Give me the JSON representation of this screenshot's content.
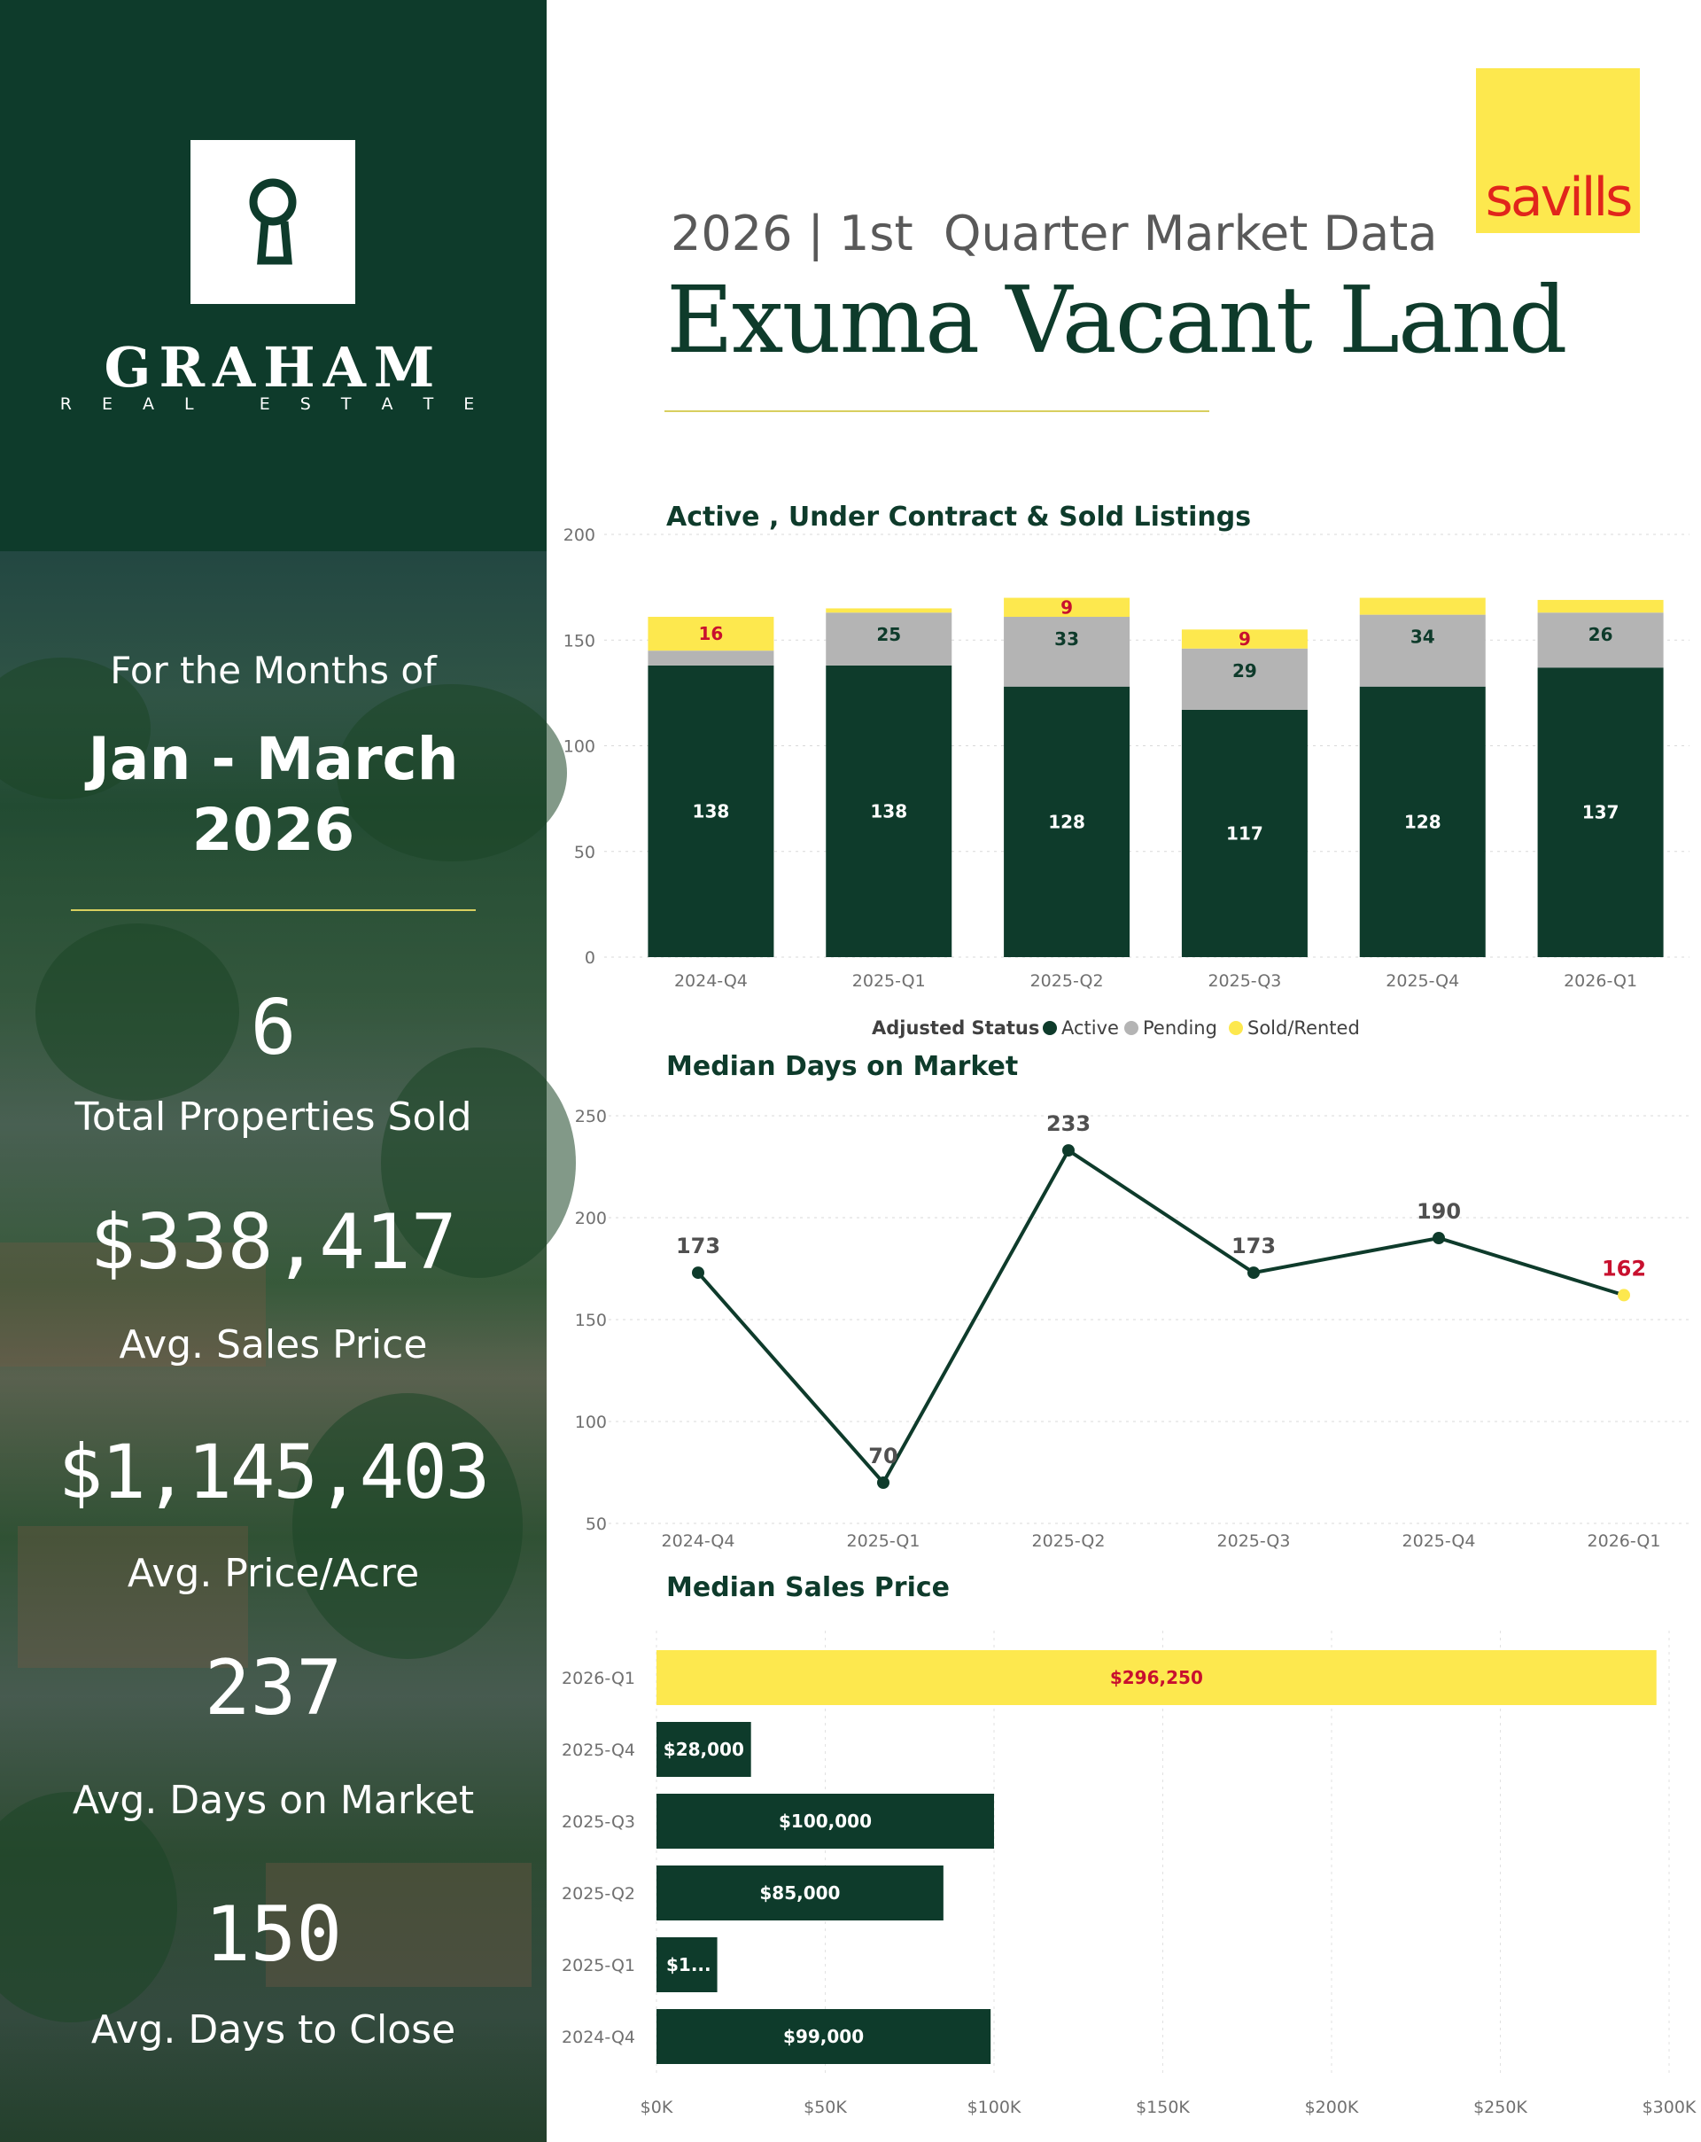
{
  "brand": {
    "name": "GRAHAM",
    "tagline": "R E A L   E S T A T E",
    "partner_logo": "savills"
  },
  "header": {
    "subtitle": "2026 | 1st  Quarter Market Data",
    "title": "Exuma Vacant Land"
  },
  "sidebar": {
    "period_label": "For the Months of",
    "period_line1": "Jan - March",
    "period_line2": "2026",
    "stats": [
      {
        "value": "6",
        "label": "Total Properties Sold"
      },
      {
        "value": "$338,417",
        "label": "Avg. Sales Price"
      },
      {
        "value": "$1,145,403",
        "label": "Avg. Price/Acre"
      },
      {
        "value": "237",
        "label": "Avg. Days on Market"
      },
      {
        "value": "150",
        "label": "Avg. Days to Close"
      }
    ]
  },
  "colors": {
    "dark_green": "#0e3b2b",
    "gray": "#b4b4b4",
    "yellow": "#fde84e",
    "red_label": "#c8102e",
    "gold": "#d8cf5f"
  },
  "chart_data": [
    {
      "type": "bar",
      "stacked": true,
      "title": "Active , Under Contract & Sold Listings",
      "categories": [
        "2024-Q4",
        "2025-Q1",
        "2025-Q2",
        "2025-Q3",
        "2025-Q4",
        "2026-Q1"
      ],
      "series": [
        {
          "name": "Active",
          "values": [
            138,
            138,
            128,
            117,
            128,
            137
          ],
          "labels": [
            "138",
            "138",
            "128",
            "117",
            "128",
            "137"
          ]
        },
        {
          "name": "Pending",
          "values": [
            7,
            25,
            33,
            29,
            34,
            26
          ],
          "labels": [
            "",
            "25",
            "33",
            "29",
            "34",
            "26"
          ]
        },
        {
          "name": "Sold/Rented",
          "values": [
            16,
            2,
            9,
            9,
            8,
            6
          ],
          "labels": [
            "16",
            "",
            "9",
            "9",
            "",
            ""
          ]
        }
      ],
      "ylim": [
        0,
        200
      ],
      "yticks": [
        "0",
        "50",
        "100",
        "150",
        "200"
      ],
      "legend_title": "Adjusted Status",
      "legend_position": "bottom",
      "grid": true
    },
    {
      "type": "line",
      "title": "Median Days on Market",
      "categories": [
        "2024-Q4",
        "2025-Q1",
        "2025-Q2",
        "2025-Q3",
        "2025-Q4",
        "2026-Q1"
      ],
      "values": [
        173,
        70,
        233,
        173,
        190,
        162
      ],
      "labels": [
        "173",
        "70",
        "233",
        "173",
        "190",
        "162"
      ],
      "ylim": [
        50,
        250
      ],
      "yticks": [
        "50",
        "100",
        "150",
        "200",
        "250"
      ],
      "grid": true
    },
    {
      "type": "bar",
      "orientation": "horizontal",
      "title": "Median Sales Price",
      "categories": [
        "2026-Q1",
        "2025-Q4",
        "2025-Q3",
        "2025-Q2",
        "2025-Q1",
        "2024-Q4"
      ],
      "values": [
        296250,
        28000,
        100000,
        85000,
        18000,
        99000
      ],
      "labels": [
        "$296,250",
        "$28,000",
        "$100,000",
        "$85,000",
        "$1...",
        "$99,000"
      ],
      "xlim": [
        0,
        300000
      ],
      "xticks": [
        "$0K",
        "$50K",
        "$100K",
        "$150K",
        "$200K",
        "$250K",
        "$300K"
      ],
      "grid": true
    }
  ]
}
